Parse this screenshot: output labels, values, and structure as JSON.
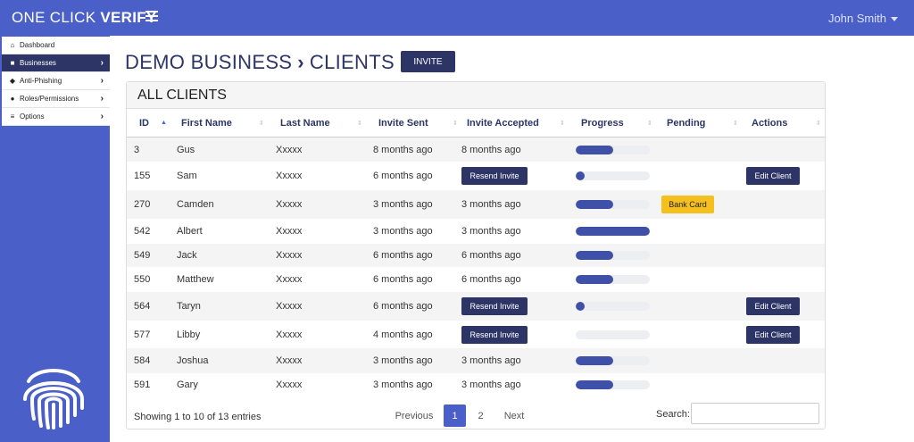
{
  "app": {
    "brand_light": "ONE CLICK ",
    "brand_bold": "VERIFY",
    "user_name": "John Smith"
  },
  "sidebar": {
    "items": [
      {
        "label": "Dashboard",
        "icon": "home-icon"
      },
      {
        "label": "Businesses",
        "icon": "briefcase-icon",
        "active": true
      },
      {
        "label": "Anti-Phishing",
        "icon": "fish-icon"
      },
      {
        "label": "Roles/Permissions",
        "icon": "lock-icon"
      },
      {
        "label": "Options",
        "icon": "list-icon"
      }
    ]
  },
  "header": {
    "business": "DEMO BUSINESS",
    "page": "CLIENTS",
    "invite_label": "INVITE"
  },
  "table": {
    "title": "ALL CLIENTS",
    "columns": [
      "ID",
      "First Name",
      "Last Name",
      "Invite Sent",
      "Invite Accepted",
      "Progress",
      "Pending",
      "Actions"
    ],
    "rows": [
      {
        "id": "3",
        "first": "Gus",
        "last": "Xxxxx",
        "sent": "8 months ago",
        "accepted": "8 months ago",
        "progress": 0.5,
        "pending": "",
        "action": ""
      },
      {
        "id": "155",
        "first": "Sam",
        "last": "Xxxxx",
        "sent": "6 months ago",
        "accepted_button": "Resend Invite",
        "progress": 0.12,
        "pending": "",
        "action": "Edit Client"
      },
      {
        "id": "270",
        "first": "Camden",
        "last": "Xxxxx",
        "sent": "3 months ago",
        "accepted": "3 months ago",
        "progress": 0.5,
        "pending": "Bank Card",
        "action": ""
      },
      {
        "id": "542",
        "first": "Albert",
        "last": "Xxxxx",
        "sent": "3 months ago",
        "accepted": "3 months ago",
        "progress": 1.0,
        "pending": "",
        "action": ""
      },
      {
        "id": "549",
        "first": "Jack",
        "last": "Xxxxx",
        "sent": "6 months ago",
        "accepted": "6 months ago",
        "progress": 0.5,
        "pending": "",
        "action": ""
      },
      {
        "id": "550",
        "first": "Matthew",
        "last": "Xxxxx",
        "sent": "6 months ago",
        "accepted": "6 months ago",
        "progress": 0.5,
        "pending": "",
        "action": ""
      },
      {
        "id": "564",
        "first": "Taryn",
        "last": "Xxxxx",
        "sent": "6 months ago",
        "accepted_button": "Resend Invite",
        "progress": 0.12,
        "pending": "",
        "action": "Edit Client"
      },
      {
        "id": "577",
        "first": "Libby",
        "last": "Xxxxx",
        "sent": "4 months ago",
        "accepted_button": "Resend Invite",
        "progress": 0.0,
        "pending": "",
        "action": "Edit Client"
      },
      {
        "id": "584",
        "first": "Joshua",
        "last": "Xxxxx",
        "sent": "3 months ago",
        "accepted": "3 months ago",
        "progress": 0.5,
        "pending": "",
        "action": ""
      },
      {
        "id": "591",
        "first": "Gary",
        "last": "Xxxxx",
        "sent": "3 months ago",
        "accepted": "3 months ago",
        "progress": 0.5,
        "pending": "",
        "action": ""
      }
    ]
  },
  "footer": {
    "info": "Showing 1 to 10 of 13 entries",
    "previous": "Previous",
    "pages": [
      "1",
      "2"
    ],
    "next": "Next",
    "search_label": "Search:",
    "search_value": ""
  },
  "colors": {
    "primary": "#4a5fc7",
    "dark": "#2c3566",
    "warning": "#f5c01d"
  }
}
